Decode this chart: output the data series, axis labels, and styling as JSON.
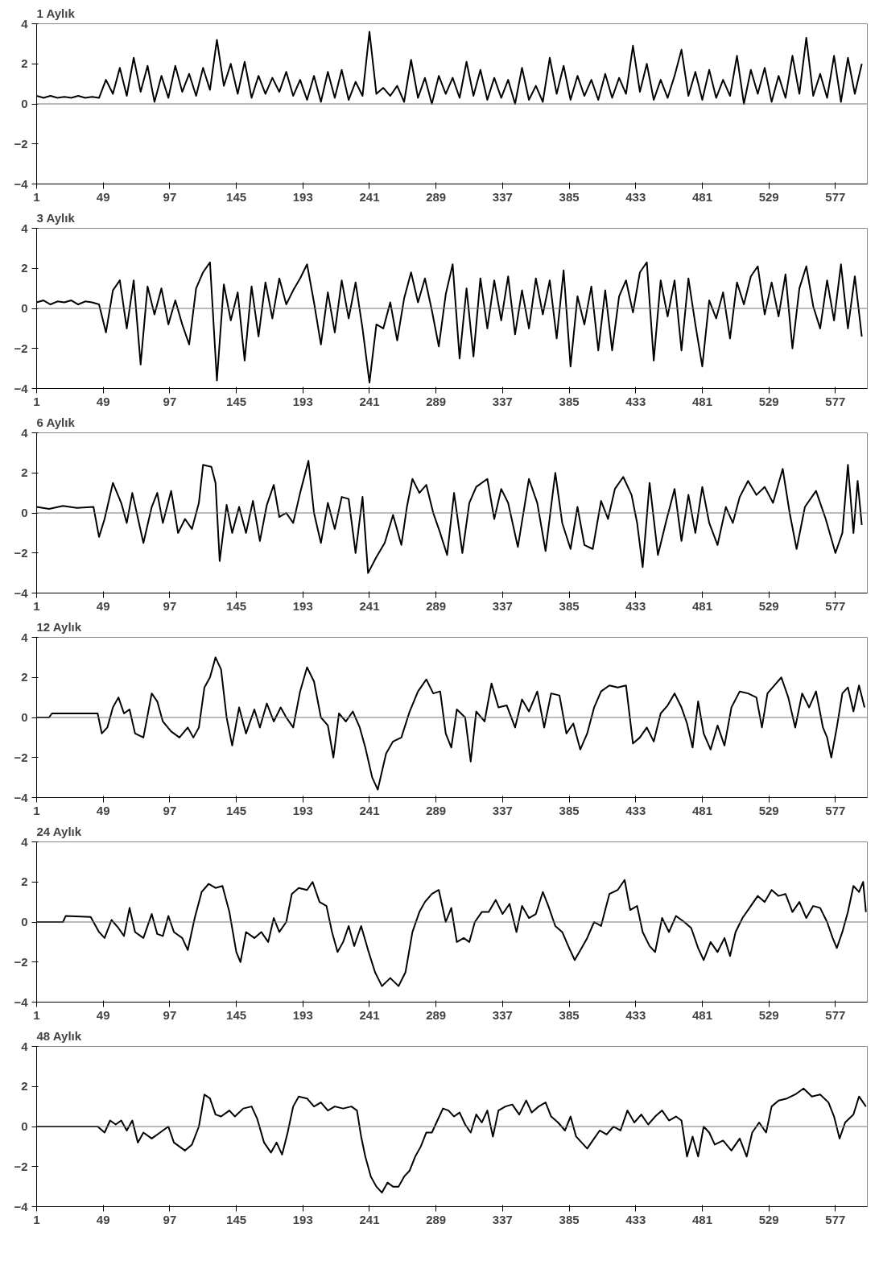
{
  "chart_data": [
    {
      "type": "line",
      "title": "1 Aylık",
      "xlim": [
        1,
        600
      ],
      "ylim": [
        -4,
        4
      ],
      "xticks": [
        1,
        49,
        97,
        145,
        193,
        241,
        289,
        337,
        385,
        433,
        481,
        529,
        577
      ],
      "yticks": [
        -4,
        -2,
        0,
        2,
        4
      ],
      "grid": false,
      "color": "#000000",
      "ref_lines": [
        {
          "axis": "y",
          "value": 0
        }
      ],
      "x": [
        1,
        6,
        11,
        16,
        21,
        26,
        31,
        36,
        41,
        46,
        51,
        56,
        61,
        66,
        71,
        76,
        81,
        86,
        91,
        96,
        101,
        106,
        111,
        116,
        121,
        126,
        131,
        136,
        141,
        146,
        151,
        156,
        161,
        166,
        171,
        176,
        181,
        186,
        191,
        196,
        201,
        206,
        211,
        216,
        221,
        226,
        231,
        236,
        241,
        246,
        251,
        256,
        261,
        266,
        271,
        276,
        281,
        286,
        291,
        296,
        301,
        306,
        311,
        316,
        321,
        326,
        331,
        336,
        341,
        346,
        351,
        356,
        361,
        366,
        371,
        376,
        381,
        386,
        391,
        396,
        401,
        406,
        411,
        416,
        421,
        426,
        431,
        436,
        441,
        446,
        451,
        456,
        461,
        466,
        471,
        476,
        481,
        486,
        491,
        496,
        501,
        506,
        511,
        516,
        521,
        526,
        531,
        536,
        541,
        546,
        551,
        556,
        561,
        566,
        571,
        576,
        581,
        586,
        591,
        596
      ],
      "values": [
        0.4,
        0.3,
        0.4,
        0.3,
        0.35,
        0.3,
        0.4,
        0.3,
        0.35,
        0.3,
        1.2,
        0.5,
        1.8,
        0.4,
        2.3,
        0.6,
        1.9,
        0.1,
        1.4,
        0.3,
        1.9,
        0.6,
        1.5,
        0.4,
        1.8,
        0.7,
        3.2,
        0.9,
        2.0,
        0.5,
        2.1,
        0.3,
        1.4,
        0.5,
        1.3,
        0.6,
        1.6,
        0.4,
        1.2,
        0.2,
        1.4,
        0.1,
        1.6,
        0.3,
        1.7,
        0.2,
        1.1,
        0.4,
        3.6,
        0.5,
        0.8,
        0.4,
        0.9,
        0.1,
        2.2,
        0.3,
        1.3,
        0.0,
        1.4,
        0.5,
        1.3,
        0.3,
        2.1,
        0.4,
        1.7,
        0.2,
        1.3,
        0.3,
        1.2,
        0.0,
        1.8,
        0.2,
        0.9,
        0.1,
        2.3,
        0.5,
        1.9,
        0.2,
        1.4,
        0.4,
        1.2,
        0.2,
        1.5,
        0.3,
        1.3,
        0.5,
        2.9,
        0.6,
        2.0,
        0.2,
        1.2,
        0.3,
        1.4,
        2.7,
        0.4,
        1.6,
        0.2,
        1.7,
        0.3,
        1.2,
        0.4,
        2.4,
        0.0,
        1.7,
        0.5,
        1.8,
        0.1,
        1.4,
        0.3,
        2.4,
        0.5,
        3.3,
        0.4,
        1.5,
        0.3,
        2.4,
        0.1,
        2.3,
        0.5,
        2.0
      ]
    },
    {
      "type": "line",
      "title": "3 Aylık",
      "xlim": [
        1,
        600
      ],
      "ylim": [
        -4,
        4
      ],
      "xticks": [
        1,
        49,
        97,
        145,
        193,
        241,
        289,
        337,
        385,
        433,
        481,
        529,
        577
      ],
      "yticks": [
        -4,
        -2,
        0,
        2,
        4
      ],
      "grid": false,
      "color": "#000000",
      "ref_lines": [
        {
          "axis": "y",
          "value": 0
        }
      ],
      "x": [
        1,
        6,
        11,
        16,
        21,
        26,
        31,
        36,
        41,
        46,
        51,
        56,
        61,
        66,
        71,
        76,
        81,
        86,
        91,
        96,
        101,
        106,
        111,
        116,
        121,
        126,
        131,
        136,
        141,
        146,
        151,
        156,
        161,
        166,
        171,
        176,
        181,
        186,
        191,
        196,
        201,
        206,
        211,
        216,
        221,
        226,
        231,
        236,
        241,
        246,
        251,
        256,
        261,
        266,
        271,
        276,
        281,
        286,
        291,
        296,
        301,
        306,
        311,
        316,
        321,
        326,
        331,
        336,
        341,
        346,
        351,
        356,
        361,
        366,
        371,
        376,
        381,
        386,
        391,
        396,
        401,
        406,
        411,
        416,
        421,
        426,
        431,
        436,
        441,
        446,
        451,
        456,
        461,
        466,
        471,
        476,
        481,
        486,
        491,
        496,
        501,
        506,
        511,
        516,
        521,
        526,
        531,
        536,
        541,
        546,
        551,
        556,
        561,
        566,
        571,
        576,
        581,
        586,
        591,
        596
      ],
      "values": [
        0.3,
        0.4,
        0.2,
        0.35,
        0.3,
        0.4,
        0.2,
        0.35,
        0.3,
        0.2,
        -1.2,
        0.9,
        1.4,
        -1.0,
        1.4,
        -2.8,
        1.1,
        -0.3,
        1.0,
        -0.8,
        0.4,
        -0.8,
        -1.8,
        1.0,
        1.8,
        2.3,
        -3.6,
        1.2,
        -0.6,
        0.8,
        -2.6,
        1.1,
        -1.4,
        1.3,
        -0.5,
        1.5,
        0.2,
        0.9,
        1.5,
        2.2,
        0.3,
        -1.8,
        0.8,
        -1.2,
        1.4,
        -0.5,
        1.3,
        -1.0,
        -3.7,
        -0.8,
        -1.0,
        0.3,
        -1.6,
        0.5,
        1.8,
        0.3,
        1.5,
        -0.1,
        -1.9,
        0.7,
        2.2,
        -2.5,
        1.0,
        -2.4,
        1.5,
        -1.0,
        1.4,
        -0.6,
        1.6,
        -1.3,
        0.9,
        -1.0,
        1.5,
        -0.3,
        1.4,
        -1.5,
        1.9,
        -2.9,
        0.6,
        -0.8,
        1.1,
        -2.1,
        0.9,
        -2.1,
        0.6,
        1.4,
        -0.2,
        1.8,
        2.3,
        -2.6,
        1.4,
        -0.4,
        1.4,
        -2.1,
        1.5,
        -0.8,
        -2.9,
        0.4,
        -0.5,
        0.8,
        -1.5,
        1.3,
        0.2,
        1.6,
        2.1,
        -0.3,
        1.3,
        -0.4,
        1.7,
        -2.0,
        1.0,
        2.1,
        0.1,
        -1.0,
        1.4,
        -0.6,
        2.2,
        -1.0,
        1.6,
        -1.4
      ]
    },
    {
      "type": "line",
      "title": "6 Aylık",
      "xlim": [
        1,
        600
      ],
      "ylim": [
        -4,
        4
      ],
      "xticks": [
        1,
        49,
        97,
        145,
        193,
        241,
        289,
        337,
        385,
        433,
        481,
        529,
        577
      ],
      "yticks": [
        -4,
        -2,
        0,
        2,
        4
      ],
      "grid": false,
      "color": "#000000",
      "ref_lines": [
        {
          "axis": "y",
          "value": 0
        }
      ],
      "x": [
        1,
        10,
        20,
        30,
        42,
        46,
        50,
        56,
        62,
        66,
        70,
        78,
        84,
        88,
        92,
        98,
        103,
        108,
        113,
        118,
        121,
        127,
        130,
        133,
        138,
        142,
        147,
        152,
        157,
        162,
        167,
        172,
        176,
        181,
        186,
        191,
        197,
        201,
        206,
        211,
        216,
        221,
        226,
        231,
        236,
        240,
        246,
        252,
        258,
        264,
        268,
        272,
        277,
        282,
        287,
        292,
        297,
        302,
        308,
        313,
        318,
        326,
        331,
        336,
        341,
        348,
        356,
        362,
        368,
        375,
        380,
        386,
        391,
        396,
        402,
        408,
        413,
        418,
        424,
        430,
        434,
        438,
        443,
        449,
        455,
        461,
        466,
        471,
        476,
        481,
        486,
        492,
        498,
        503,
        508,
        514,
        520,
        526,
        532,
        539,
        544,
        549,
        555,
        563,
        570,
        577,
        582,
        586,
        590,
        593,
        596
      ],
      "values": [
        0.3,
        0.2,
        0.35,
        0.25,
        0.3,
        -1.2,
        -0.3,
        1.5,
        0.5,
        -0.5,
        1.0,
        -1.5,
        0.3,
        1.0,
        -0.5,
        1.1,
        -1.0,
        -0.3,
        -0.8,
        0.5,
        2.4,
        2.3,
        1.5,
        -2.4,
        0.4,
        -1.0,
        0.3,
        -1.0,
        0.6,
        -1.4,
        0.4,
        1.4,
        -0.2,
        0.0,
        -0.5,
        1.0,
        2.6,
        0.0,
        -1.5,
        0.5,
        -0.8,
        0.8,
        0.7,
        -2.0,
        0.8,
        -3.0,
        -2.2,
        -1.5,
        -0.1,
        -1.6,
        0.3,
        1.7,
        1.0,
        1.4,
        0.0,
        -1.0,
        -2.1,
        1.0,
        -2.0,
        0.5,
        1.3,
        1.7,
        -0.3,
        1.2,
        0.5,
        -1.7,
        1.7,
        0.5,
        -1.9,
        2.0,
        -0.5,
        -1.8,
        0.3,
        -1.6,
        -1.8,
        0.6,
        -0.3,
        1.2,
        1.8,
        0.9,
        -0.5,
        -2.7,
        1.5,
        -2.1,
        -0.4,
        1.2,
        -1.4,
        0.9,
        -1.0,
        1.3,
        -0.5,
        -1.6,
        0.3,
        -0.5,
        0.8,
        1.6,
        0.9,
        1.3,
        0.5,
        2.2,
        0.0,
        -1.8,
        0.3,
        1.1,
        -0.3,
        -2.0,
        -1.0,
        2.4,
        -1.0,
        1.6,
        -0.6
      ]
    },
    {
      "type": "line",
      "title": "12 Aylık",
      "xlim": [
        1,
        600
      ],
      "ylim": [
        -4,
        4
      ],
      "xticks": [
        1,
        49,
        97,
        145,
        193,
        241,
        289,
        337,
        385,
        433,
        481,
        529,
        577
      ],
      "yticks": [
        -4,
        -2,
        0,
        2,
        4
      ],
      "grid": false,
      "color": "#000000",
      "ref_lines": [
        {
          "axis": "y",
          "value": 0
        }
      ],
      "x": [
        1,
        10,
        12,
        25,
        45,
        48,
        52,
        56,
        60,
        64,
        68,
        72,
        78,
        84,
        88,
        92,
        98,
        104,
        110,
        114,
        118,
        122,
        126,
        130,
        134,
        138,
        142,
        147,
        152,
        158,
        162,
        167,
        172,
        177,
        181,
        186,
        191,
        196,
        201,
        206,
        211,
        215,
        219,
        224,
        229,
        234,
        238,
        243,
        247,
        253,
        258,
        264,
        270,
        276,
        282,
        287,
        292,
        296,
        300,
        304,
        310,
        314,
        318,
        324,
        329,
        334,
        340,
        346,
        351,
        356,
        362,
        367,
        372,
        378,
        383,
        388,
        393,
        398,
        403,
        408,
        414,
        420,
        426,
        431,
        436,
        441,
        446,
        451,
        456,
        461,
        466,
        470,
        474,
        478,
        482,
        487,
        492,
        497,
        502,
        508,
        514,
        520,
        524,
        528,
        533,
        538,
        543,
        548,
        553,
        558,
        563,
        568,
        571,
        574,
        578,
        582,
        586,
        590,
        594,
        598
      ],
      "values": [
        0,
        0,
        0.2,
        0.2,
        0.2,
        -0.8,
        -0.5,
        0.5,
        1.0,
        0.2,
        0.4,
        -0.8,
        -1.0,
        1.2,
        0.8,
        -0.2,
        -0.7,
        -1.0,
        -0.5,
        -1.0,
        -0.5,
        1.5,
        2.0,
        3.0,
        2.4,
        0.0,
        -1.4,
        0.5,
        -0.8,
        0.4,
        -0.5,
        0.7,
        -0.2,
        0.5,
        0.0,
        -0.5,
        1.3,
        2.5,
        1.8,
        0.0,
        -0.4,
        -2.0,
        0.2,
        -0.2,
        0.3,
        -0.5,
        -1.5,
        -3.0,
        -3.6,
        -1.8,
        -1.2,
        -1.0,
        0.3,
        1.3,
        1.9,
        1.2,
        1.3,
        -0.8,
        -1.5,
        0.4,
        0.0,
        -2.2,
        0.3,
        -0.2,
        1.7,
        0.5,
        0.6,
        -0.5,
        0.9,
        0.3,
        1.3,
        -0.5,
        1.2,
        1.1,
        -0.8,
        -0.3,
        -1.6,
        -0.8,
        0.5,
        1.3,
        1.6,
        1.5,
        1.6,
        -1.3,
        -1.0,
        -0.5,
        -1.2,
        0.2,
        0.6,
        1.2,
        0.5,
        -0.3,
        -1.5,
        0.8,
        -0.8,
        -1.6,
        -0.4,
        -1.4,
        0.5,
        1.3,
        1.2,
        1.0,
        -0.5,
        1.2,
        1.6,
        2.0,
        1.0,
        -0.5,
        1.2,
        0.5,
        1.3,
        -0.5,
        -1.0,
        -2.0,
        -0.5,
        1.2,
        1.5,
        0.3,
        1.6,
        0.5
      ]
    },
    {
      "type": "line",
      "title": "24 Aylık",
      "xlim": [
        1,
        600
      ],
      "ylim": [
        -4,
        4
      ],
      "xticks": [
        1,
        49,
        97,
        145,
        193,
        241,
        289,
        337,
        385,
        433,
        481,
        529,
        577
      ],
      "yticks": [
        -4,
        -2,
        0,
        2,
        4
      ],
      "grid": false,
      "color": "#000000",
      "ref_lines": [
        {
          "axis": "y",
          "value": 0
        }
      ],
      "x": [
        1,
        20,
        22,
        40,
        46,
        50,
        55,
        60,
        64,
        68,
        72,
        78,
        84,
        88,
        92,
        96,
        100,
        106,
        110,
        115,
        120,
        125,
        130,
        135,
        140,
        145,
        148,
        152,
        158,
        163,
        168,
        172,
        176,
        181,
        185,
        190,
        196,
        200,
        205,
        210,
        214,
        218,
        222,
        226,
        230,
        235,
        240,
        245,
        250,
        256,
        262,
        267,
        272,
        277,
        281,
        286,
        291,
        296,
        300,
        304,
        309,
        313,
        317,
        322,
        327,
        332,
        337,
        342,
        347,
        351,
        356,
        361,
        366,
        370,
        375,
        380,
        385,
        389,
        394,
        398,
        403,
        408,
        414,
        420,
        425,
        429,
        434,
        438,
        443,
        447,
        452,
        457,
        462,
        468,
        473,
        478,
        482,
        487,
        492,
        497,
        501,
        505,
        510,
        516,
        521,
        526,
        531,
        536,
        541,
        546,
        551,
        556,
        561,
        566,
        571,
        575,
        578,
        582,
        586,
        590,
        594,
        597,
        599
      ],
      "values": [
        0,
        0,
        0.3,
        0.25,
        -0.5,
        -0.8,
        0.1,
        -0.3,
        -0.7,
        0.7,
        -0.5,
        -0.8,
        0.4,
        -0.6,
        -0.7,
        0.3,
        -0.5,
        -0.8,
        -1.4,
        0.2,
        1.5,
        1.9,
        1.7,
        1.8,
        0.5,
        -1.5,
        -2.0,
        -0.5,
        -0.8,
        -0.5,
        -1.0,
        0.2,
        -0.5,
        0.0,
        1.4,
        1.7,
        1.6,
        2.0,
        1.0,
        0.8,
        -0.5,
        -1.5,
        -1.0,
        -0.2,
        -1.2,
        -0.2,
        -1.4,
        -2.5,
        -3.2,
        -2.8,
        -3.2,
        -2.5,
        -0.5,
        0.5,
        1.0,
        1.4,
        1.6,
        0.0,
        0.7,
        -1.0,
        -0.8,
        -1.0,
        0.0,
        0.5,
        0.5,
        1.1,
        0.4,
        0.9,
        -0.5,
        0.8,
        0.2,
        0.4,
        1.5,
        0.8,
        -0.2,
        -0.5,
        -1.3,
        -1.9,
        -1.3,
        -0.8,
        0.0,
        -0.2,
        1.4,
        1.6,
        2.1,
        0.6,
        0.8,
        -0.5,
        -1.2,
        -1.5,
        0.2,
        -0.5,
        0.3,
        0.0,
        -0.3,
        -1.3,
        -1.9,
        -1.0,
        -1.5,
        -0.8,
        -1.7,
        -0.5,
        0.2,
        0.8,
        1.3,
        1.0,
        1.6,
        1.3,
        1.4,
        0.5,
        1.0,
        0.2,
        0.8,
        0.7,
        0.0,
        -0.8,
        -1.3,
        -0.5,
        0.5,
        1.8,
        1.5,
        2.0,
        0.5
      ]
    },
    {
      "type": "line",
      "title": "48 Aylık",
      "xlim": [
        1,
        600
      ],
      "ylim": [
        -4,
        4
      ],
      "xticks": [
        1,
        49,
        97,
        145,
        193,
        241,
        289,
        337,
        385,
        433,
        481,
        529,
        577
      ],
      "yticks": [
        -4,
        -2,
        0,
        2,
        4
      ],
      "grid": false,
      "color": "#000000",
      "ref_lines": [
        {
          "axis": "y",
          "value": 0
        }
      ],
      "x": [
        1,
        45,
        50,
        54,
        58,
        62,
        66,
        70,
        74,
        78,
        84,
        90,
        96,
        100,
        104,
        108,
        113,
        118,
        122,
        126,
        130,
        134,
        140,
        144,
        150,
        156,
        160,
        165,
        170,
        174,
        178,
        182,
        186,
        190,
        196,
        201,
        206,
        211,
        216,
        222,
        228,
        232,
        235,
        238,
        242,
        246,
        250,
        254,
        258,
        262,
        266,
        270,
        274,
        278,
        282,
        286,
        290,
        294,
        298,
        302,
        306,
        310,
        314,
        318,
        322,
        326,
        330,
        334,
        339,
        344,
        349,
        354,
        358,
        363,
        368,
        372,
        377,
        382,
        386,
        390,
        394,
        398,
        402,
        407,
        412,
        417,
        422,
        427,
        432,
        437,
        442,
        447,
        452,
        457,
        462,
        466,
        470,
        474,
        478,
        482,
        486,
        490,
        496,
        502,
        508,
        513,
        517,
        522,
        527,
        531,
        536,
        542,
        548,
        554,
        560,
        566,
        572,
        576,
        580,
        584,
        590,
        594,
        599
      ],
      "values": [
        0,
        0,
        -0.3,
        0.3,
        0.1,
        0.3,
        -0.2,
        0.3,
        -0.8,
        -0.3,
        -0.6,
        -0.3,
        0.0,
        -0.8,
        -1.0,
        -1.2,
        -0.9,
        0.0,
        1.6,
        1.4,
        0.6,
        0.5,
        0.8,
        0.5,
        0.9,
        1.0,
        0.4,
        -0.8,
        -1.3,
        -0.8,
        -1.4,
        -0.3,
        1.0,
        1.5,
        1.4,
        1.0,
        1.2,
        0.8,
        1.0,
        0.9,
        1.0,
        0.8,
        -0.5,
        -1.5,
        -2.5,
        -3.0,
        -3.3,
        -2.8,
        -3.0,
        -3.0,
        -2.5,
        -2.2,
        -1.5,
        -1.0,
        -0.3,
        -0.3,
        0.3,
        0.9,
        0.8,
        0.5,
        0.7,
        0.1,
        -0.3,
        0.6,
        0.2,
        0.8,
        -0.5,
        0.8,
        1.0,
        1.1,
        0.6,
        1.3,
        0.7,
        1.0,
        1.2,
        0.5,
        0.2,
        -0.2,
        0.5,
        -0.5,
        -0.8,
        -1.1,
        -0.7,
        -0.2,
        -0.4,
        0.0,
        -0.2,
        0.8,
        0.2,
        0.6,
        0.1,
        0.5,
        0.8,
        0.3,
        0.5,
        0.3,
        -1.5,
        -0.5,
        -1.5,
        0.0,
        -0.3,
        -0.9,
        -0.7,
        -1.2,
        -0.6,
        -1.5,
        -0.3,
        0.2,
        -0.3,
        1.0,
        1.3,
        1.4,
        1.6,
        1.9,
        1.5,
        1.6,
        1.2,
        0.5,
        -0.6,
        0.2,
        0.6,
        1.5,
        1.0
      ]
    }
  ]
}
